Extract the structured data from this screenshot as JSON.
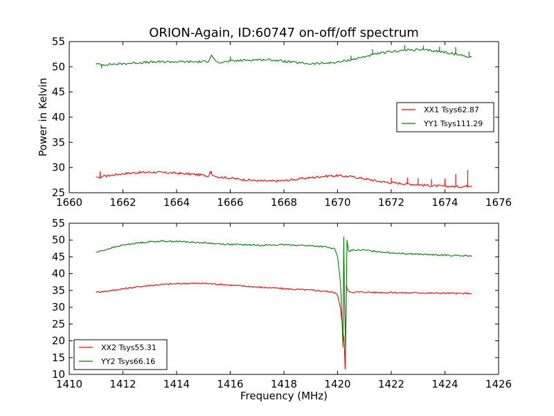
{
  "chart_data": [
    {
      "type": "line",
      "title": "ORION-Again, ID:60747 on-off/off spectrum",
      "xlabel": "",
      "ylabel": "Power in Kelvin",
      "xlim": [
        1660,
        1676
      ],
      "ylim": [
        25,
        55
      ],
      "xticks": [
        1660,
        1662,
        1664,
        1666,
        1668,
        1670,
        1672,
        1674,
        1676
      ],
      "yticks": [
        25,
        30,
        35,
        40,
        45,
        50,
        55
      ],
      "grid": false,
      "legend_position": "center-right",
      "series": [
        {
          "name": "XX1 Tsys62.87",
          "color": "#ff0000",
          "x": [
            1661.0,
            1661.15,
            1661.3,
            1662.0,
            1662.5,
            1663.0,
            1663.5,
            1664.0,
            1664.5,
            1665.0,
            1665.2,
            1665.25,
            1665.35,
            1665.5,
            1666.0,
            1666.5,
            1667.0,
            1667.5,
            1668.0,
            1668.5,
            1669.0,
            1669.5,
            1670.0,
            1670.5,
            1671.0,
            1671.5,
            1672.0,
            1672.5,
            1673.0,
            1673.5,
            1674.0,
            1674.5,
            1675.0
          ],
          "y": [
            28.2,
            27.9,
            28.3,
            28.8,
            29.0,
            29.1,
            29.0,
            28.9,
            28.7,
            28.5,
            28.3,
            29.2,
            28.4,
            28.2,
            27.9,
            27.6,
            27.4,
            27.3,
            27.4,
            27.7,
            28.0,
            28.3,
            28.4,
            28.2,
            27.8,
            27.3,
            27.0,
            26.8,
            26.6,
            26.4,
            26.3,
            26.2,
            26.4
          ]
        },
        {
          "name": "YY1 Tsys111.29",
          "color": "#008000",
          "x": [
            1661.0,
            1661.2,
            1661.5,
            1662.0,
            1662.5,
            1663.0,
            1663.5,
            1664.0,
            1664.5,
            1665.0,
            1665.2,
            1665.3,
            1665.45,
            1665.6,
            1666.0,
            1666.5,
            1667.0,
            1667.5,
            1668.0,
            1668.5,
            1669.0,
            1669.5,
            1670.0,
            1670.5,
            1671.0,
            1671.5,
            1672.0,
            1672.5,
            1673.0,
            1673.5,
            1674.0,
            1674.5,
            1675.0
          ],
          "y": [
            50.6,
            50.4,
            50.5,
            50.6,
            50.8,
            50.9,
            51.0,
            51.0,
            51.0,
            51.0,
            51.1,
            52.3,
            51.2,
            50.9,
            51.1,
            51.3,
            51.4,
            51.4,
            51.1,
            50.8,
            50.6,
            50.7,
            50.9,
            51.4,
            52.0,
            52.6,
            53.0,
            53.3,
            53.4,
            53.2,
            52.9,
            52.4,
            51.9
          ]
        }
      ],
      "spikes": [
        {
          "series": 0,
          "x": [
            1661.15,
            1665.3,
            1672.0,
            1672.6,
            1673.0,
            1673.5,
            1674.0,
            1674.4,
            1674.85
          ],
          "y": [
            29.2,
            29.3,
            28.0,
            28.0,
            27.9,
            27.7,
            27.8,
            28.7,
            29.5
          ]
        },
        {
          "series": 1,
          "x": [
            1661.2,
            1666.0,
            1670.5,
            1671.3,
            1672.5,
            1673.2,
            1673.8,
            1674.4,
            1674.9
          ],
          "y": [
            49.7,
            52.0,
            52.2,
            53.5,
            54.3,
            54.2,
            54.0,
            53.9,
            53.0
          ]
        }
      ]
    },
    {
      "type": "line",
      "title": "",
      "xlabel": "Frequency (MHz)",
      "ylabel": "",
      "xlim": [
        1410,
        1426
      ],
      "ylim": [
        10,
        55
      ],
      "xticks": [
        1410,
        1412,
        1414,
        1416,
        1418,
        1420,
        1422,
        1424,
        1426
      ],
      "yticks": [
        10,
        15,
        20,
        25,
        30,
        35,
        40,
        45,
        50,
        55
      ],
      "grid": false,
      "legend_position": "lower-left",
      "series": [
        {
          "name": "XX2 Tsys55.31",
          "color": "#ff0000",
          "x": [
            1411.0,
            1411.5,
            1412.0,
            1412.5,
            1413.0,
            1413.5,
            1414.0,
            1414.5,
            1415.0,
            1415.5,
            1416.0,
            1416.5,
            1417.0,
            1417.5,
            1418.0,
            1418.5,
            1419.0,
            1419.5,
            1419.9,
            1420.0,
            1420.1,
            1420.2,
            1420.25,
            1420.28,
            1420.3,
            1420.33,
            1420.36,
            1420.4,
            1420.5,
            1421.0,
            1421.5,
            1422.0,
            1422.5,
            1423.0,
            1423.5,
            1424.0,
            1424.5,
            1425.0
          ],
          "y": [
            34.5,
            34.9,
            35.5,
            36.0,
            36.5,
            36.8,
            37.0,
            37.1,
            37.1,
            36.9,
            36.6,
            36.3,
            36.0,
            35.8,
            35.5,
            35.3,
            35.1,
            34.8,
            34.4,
            33.5,
            30.0,
            23.0,
            19.0,
            11.5,
            24.0,
            36.5,
            35.5,
            34.8,
            34.5,
            34.5,
            34.4,
            34.4,
            34.3,
            34.3,
            34.2,
            34.2,
            34.1,
            34.1
          ]
        },
        {
          "name": "YY2 Tsys66.16",
          "color": "#008000",
          "x": [
            1411.0,
            1411.5,
            1412.0,
            1412.5,
            1413.0,
            1413.5,
            1414.0,
            1414.5,
            1415.0,
            1415.5,
            1416.0,
            1416.5,
            1417.0,
            1417.5,
            1418.0,
            1418.5,
            1419.0,
            1419.5,
            1419.9,
            1420.0,
            1420.1,
            1420.15,
            1420.2,
            1420.23,
            1420.26,
            1420.3,
            1420.35,
            1420.4,
            1420.45,
            1420.5,
            1421.0,
            1421.5,
            1422.0,
            1422.5,
            1423.0,
            1423.5,
            1424.0,
            1424.5,
            1425.0
          ],
          "y": [
            46.3,
            47.5,
            48.5,
            49.1,
            49.5,
            49.7,
            49.6,
            49.4,
            49.2,
            48.9,
            48.7,
            48.6,
            48.5,
            48.5,
            48.6,
            48.5,
            48.3,
            48.0,
            47.3,
            45.0,
            38.0,
            30.0,
            18.0,
            51.0,
            30.0,
            18.0,
            50.0,
            47.0,
            46.5,
            47.0,
            47.0,
            46.6,
            46.2,
            46.0,
            45.8,
            45.6,
            45.5,
            45.3,
            45.3
          ]
        }
      ]
    }
  ]
}
